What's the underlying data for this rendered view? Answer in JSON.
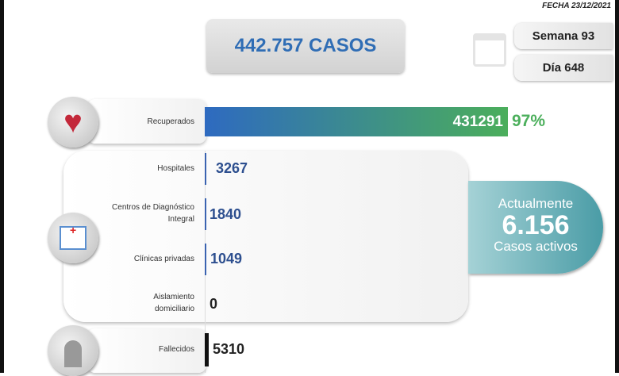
{
  "header": {
    "date": "FECHA 23/12/2021",
    "total_cases": "442.757 CASOS",
    "week": "Semana 93",
    "day": "Día 648"
  },
  "recovered": {
    "label": "Recuperados",
    "value": "431291",
    "percent": "97%",
    "fraction": 0.97
  },
  "hospitalized": [
    {
      "label": "Hospitales",
      "value": "3267"
    },
    {
      "label": "Centros de Diagnóstico Integral",
      "value": "1840"
    },
    {
      "label": "Clínicas privadas",
      "value": "1049"
    },
    {
      "label": "Aislamiento domiciliario",
      "value": "0"
    }
  ],
  "active": {
    "prefix": "Actualmente",
    "value": "6.156",
    "suffix": "Casos activos"
  },
  "deaths": {
    "label": "Fallecidos",
    "value": "5310"
  },
  "colors": {
    "blue": "#2f6db5",
    "green": "#4caf5c",
    "teal": "#4ea3ad"
  }
}
